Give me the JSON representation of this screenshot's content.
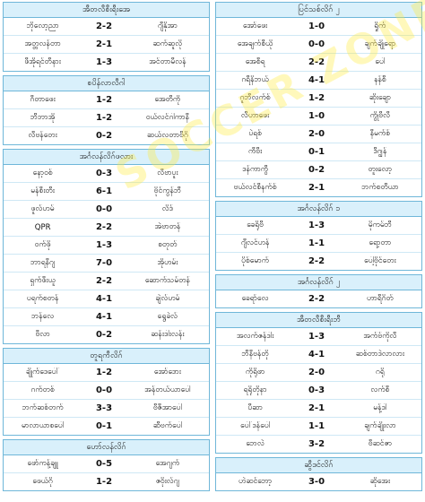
{
  "watermark": "SOCCER ZONE",
  "columns": [
    {
      "sections": [
        {
          "title": "အီတလီစီးရီးအေ",
          "matches": [
            {
              "home": "ဘိုလော့ညာ",
              "score": "2-2",
              "away": "ဂျီနိုအာ"
            },
            {
              "home": "အတ္တလန်တာ",
              "score": "2-1",
              "away": "ဆက်ဆူလို"
            },
            {
              "home": "ဖီအိုရင်တီနား",
              "score": "1-3",
              "away": "အင်တာမီလန်"
            }
          ]
        },
        {
          "title": "စပိန်လာလီဂါ",
          "matches": [
            {
              "home": "ဂီတာဖေး",
              "score": "1-2",
              "away": "အေတီကို"
            },
            {
              "home": "ဘီဘာအို",
              "score": "1-2",
              "away": "ဝယ်လင်ဂါကာနီ"
            },
            {
              "home": "လီဗန်တေး",
              "score": "0-2",
              "away": "ဆယ်လတာဗီဂို"
            }
          ]
        },
        {
          "title": "အင်္ဂလန်လိဂ်ဖလား",
          "matches": [
            {
              "home": "နော့ဝစ်",
              "score": "0-3",
              "away": "လီဗာပူး"
            },
            {
              "home": "မန်စီးတီး",
              "score": "6-1",
              "away": "ဗိုင်ကွန်ဘီ"
            },
            {
              "home": "ဖူလ်ဟမ်",
              "score": "0-0",
              "away": "လိဒ်"
            },
            {
              "home": "QPR",
              "score": "2-2",
              "away": "အဲဗာတန်"
            },
            {
              "home": "ဝက်ဖို",
              "score": "1-3",
              "away": "စတုတ်"
            },
            {
              "home": "ဘာရနီဂျ",
              "score": "7-0",
              "away": "အိုဟမ်း"
            },
            {
              "home": "ရှက်ဖီးယူ",
              "score": "2-2",
              "away": "ဆောက်သမ်တန်"
            },
            {
              "home": "ပရက်စတန်",
              "score": "4-1",
              "away": "ချဲလ်ဟမ်"
            },
            {
              "home": "ဘန်လေ",
              "score": "4-1",
              "away": "ရွေခဲလ်"
            },
            {
              "home": "ဗီလာ",
              "score": "0-2",
              "away": "ဆန်းဒါးလန်း"
            }
          ]
        },
        {
          "title": "တူရကီလိဂ်",
          "matches": [
            {
              "home": "ချိုက်ဒေပေါ်",
              "score": "1-2",
              "away": "အော်ဒေား"
            },
            {
              "home": "ဂက်တစ်",
              "score": "0-0",
              "away": "အန်တယ်ယာပေါ"
            },
            {
              "home": "ဘက်ဆစ်တက်",
              "score": "3-3",
              "away": "ဗီဇီအာပေါ"
            },
            {
              "home": "မာလာယာစပေါ",
              "score": "0-1",
              "away": "ဆီဗက်ပေါ"
            }
          ]
        },
        {
          "title": "ဟော်လန်လိဂ်",
          "matches": [
            {
              "home": "ဖော်ကန့်ချူ",
              "score": "0-5",
              "away": "အေဂျက်"
            },
            {
              "home": "ဖေယ်ဂို",
              "score": "1-2",
              "away": "ဇဝိုးလ်ဂျ"
            }
          ]
        }
      ]
    },
    {
      "sections": [
        {
          "title": "ပြင်သစ်လိဂ် ၂",
          "matches": [
            {
              "home": "အော်ဖေး",
              "score": "1-0",
              "away": "ရှိုက်"
            },
            {
              "home": "အေချက်စီယို",
              "score": "0-0",
              "away": "ချက်ချိုရော"
            },
            {
              "home": "အေစီရ",
              "score": "2-2",
              "away": "ပေါ"
            },
            {
              "home": "ဂရီနိဘယ်",
              "score": "4-1",
              "away": "နန်စီ"
            },
            {
              "home": "ဂူဘီလက်စ်",
              "score": "1-2",
              "away": "ဆိုးချော"
            },
            {
              "home": "လီဟာဖေး",
              "score": "1-0",
              "away": "ကွိုဗီလီ"
            },
            {
              "home": "ပဲရစ်",
              "score": "2-0",
              "away": "နီမက်စ်"
            },
            {
              "home": "ကီဗီး",
              "score": "0-1",
              "away": "ဒီဂျွန်"
            },
            {
              "home": "ဒန်ကာကွီ",
              "score": "0-2",
              "away": "တူးလော့"
            },
            {
              "home": "ဗယ်လင်စီနက်စ်",
              "score": "2-1",
              "away": "ဘက်စတီယာ"
            }
          ]
        },
        {
          "title": "အင်္ဂလန်လိဂ် ၁",
          "matches": [
            {
              "home": "ခေရိုဗီ",
              "score": "1-3",
              "away": "မိုကမ်ဘီ"
            },
            {
              "home": "ဂျီလင်ဟန်",
              "score": "1-1",
              "away": "ရော့တာ"
            },
            {
              "home": "ပိုစ်မောက်",
              "score": "2-2",
              "away": "ပေါ့ဗိုင်တေး"
            }
          ]
        },
        {
          "title": "အင်္ဂလန်လိဂ် ၂",
          "matches": [
            {
              "home": "ခေရာ်လေ",
              "score": "2-2",
              "away": "ဟာရီဂိတ်"
            }
          ]
        },
        {
          "title": "အီတလီစီးရီးဘီ",
          "matches": [
            {
              "home": "အလက်ဇန်ဒါး",
              "score": "1-3",
              "away": "အက်ဗ်ကိုလီ"
            },
            {
              "home": "ဘီနီဗန်တို",
              "score": "4-1",
              "away": "ဆစ်တာဒဲလာလား"
            },
            {
              "home": "ကိုရိုဖာ",
              "score": "2-0",
              "away": "ဂရို"
            },
            {
              "home": "ရရိုတိုနာ",
              "score": "0-3",
              "away": "လက်စီ"
            },
            {
              "home": "ပီဆာ",
              "score": "2-1",
              "away": "မန့်ဒါ"
            },
            {
              "home": "ပေါ်ဒန်ပေါ",
              "score": "1-1",
              "away": "ချက်ချိုးလာ"
            },
            {
              "home": "ဘေလဲ",
              "score": "3-2",
              "away": "ဗီဆင်ဇာ"
            }
          ]
        },
        {
          "title": "ဆွီဒင်လိဂ်",
          "matches": [
            {
              "home": "ဟဲဆင်ဘော့",
              "score": "3-0",
              "away": "ဆိုအေး"
            }
          ]
        }
      ]
    }
  ]
}
